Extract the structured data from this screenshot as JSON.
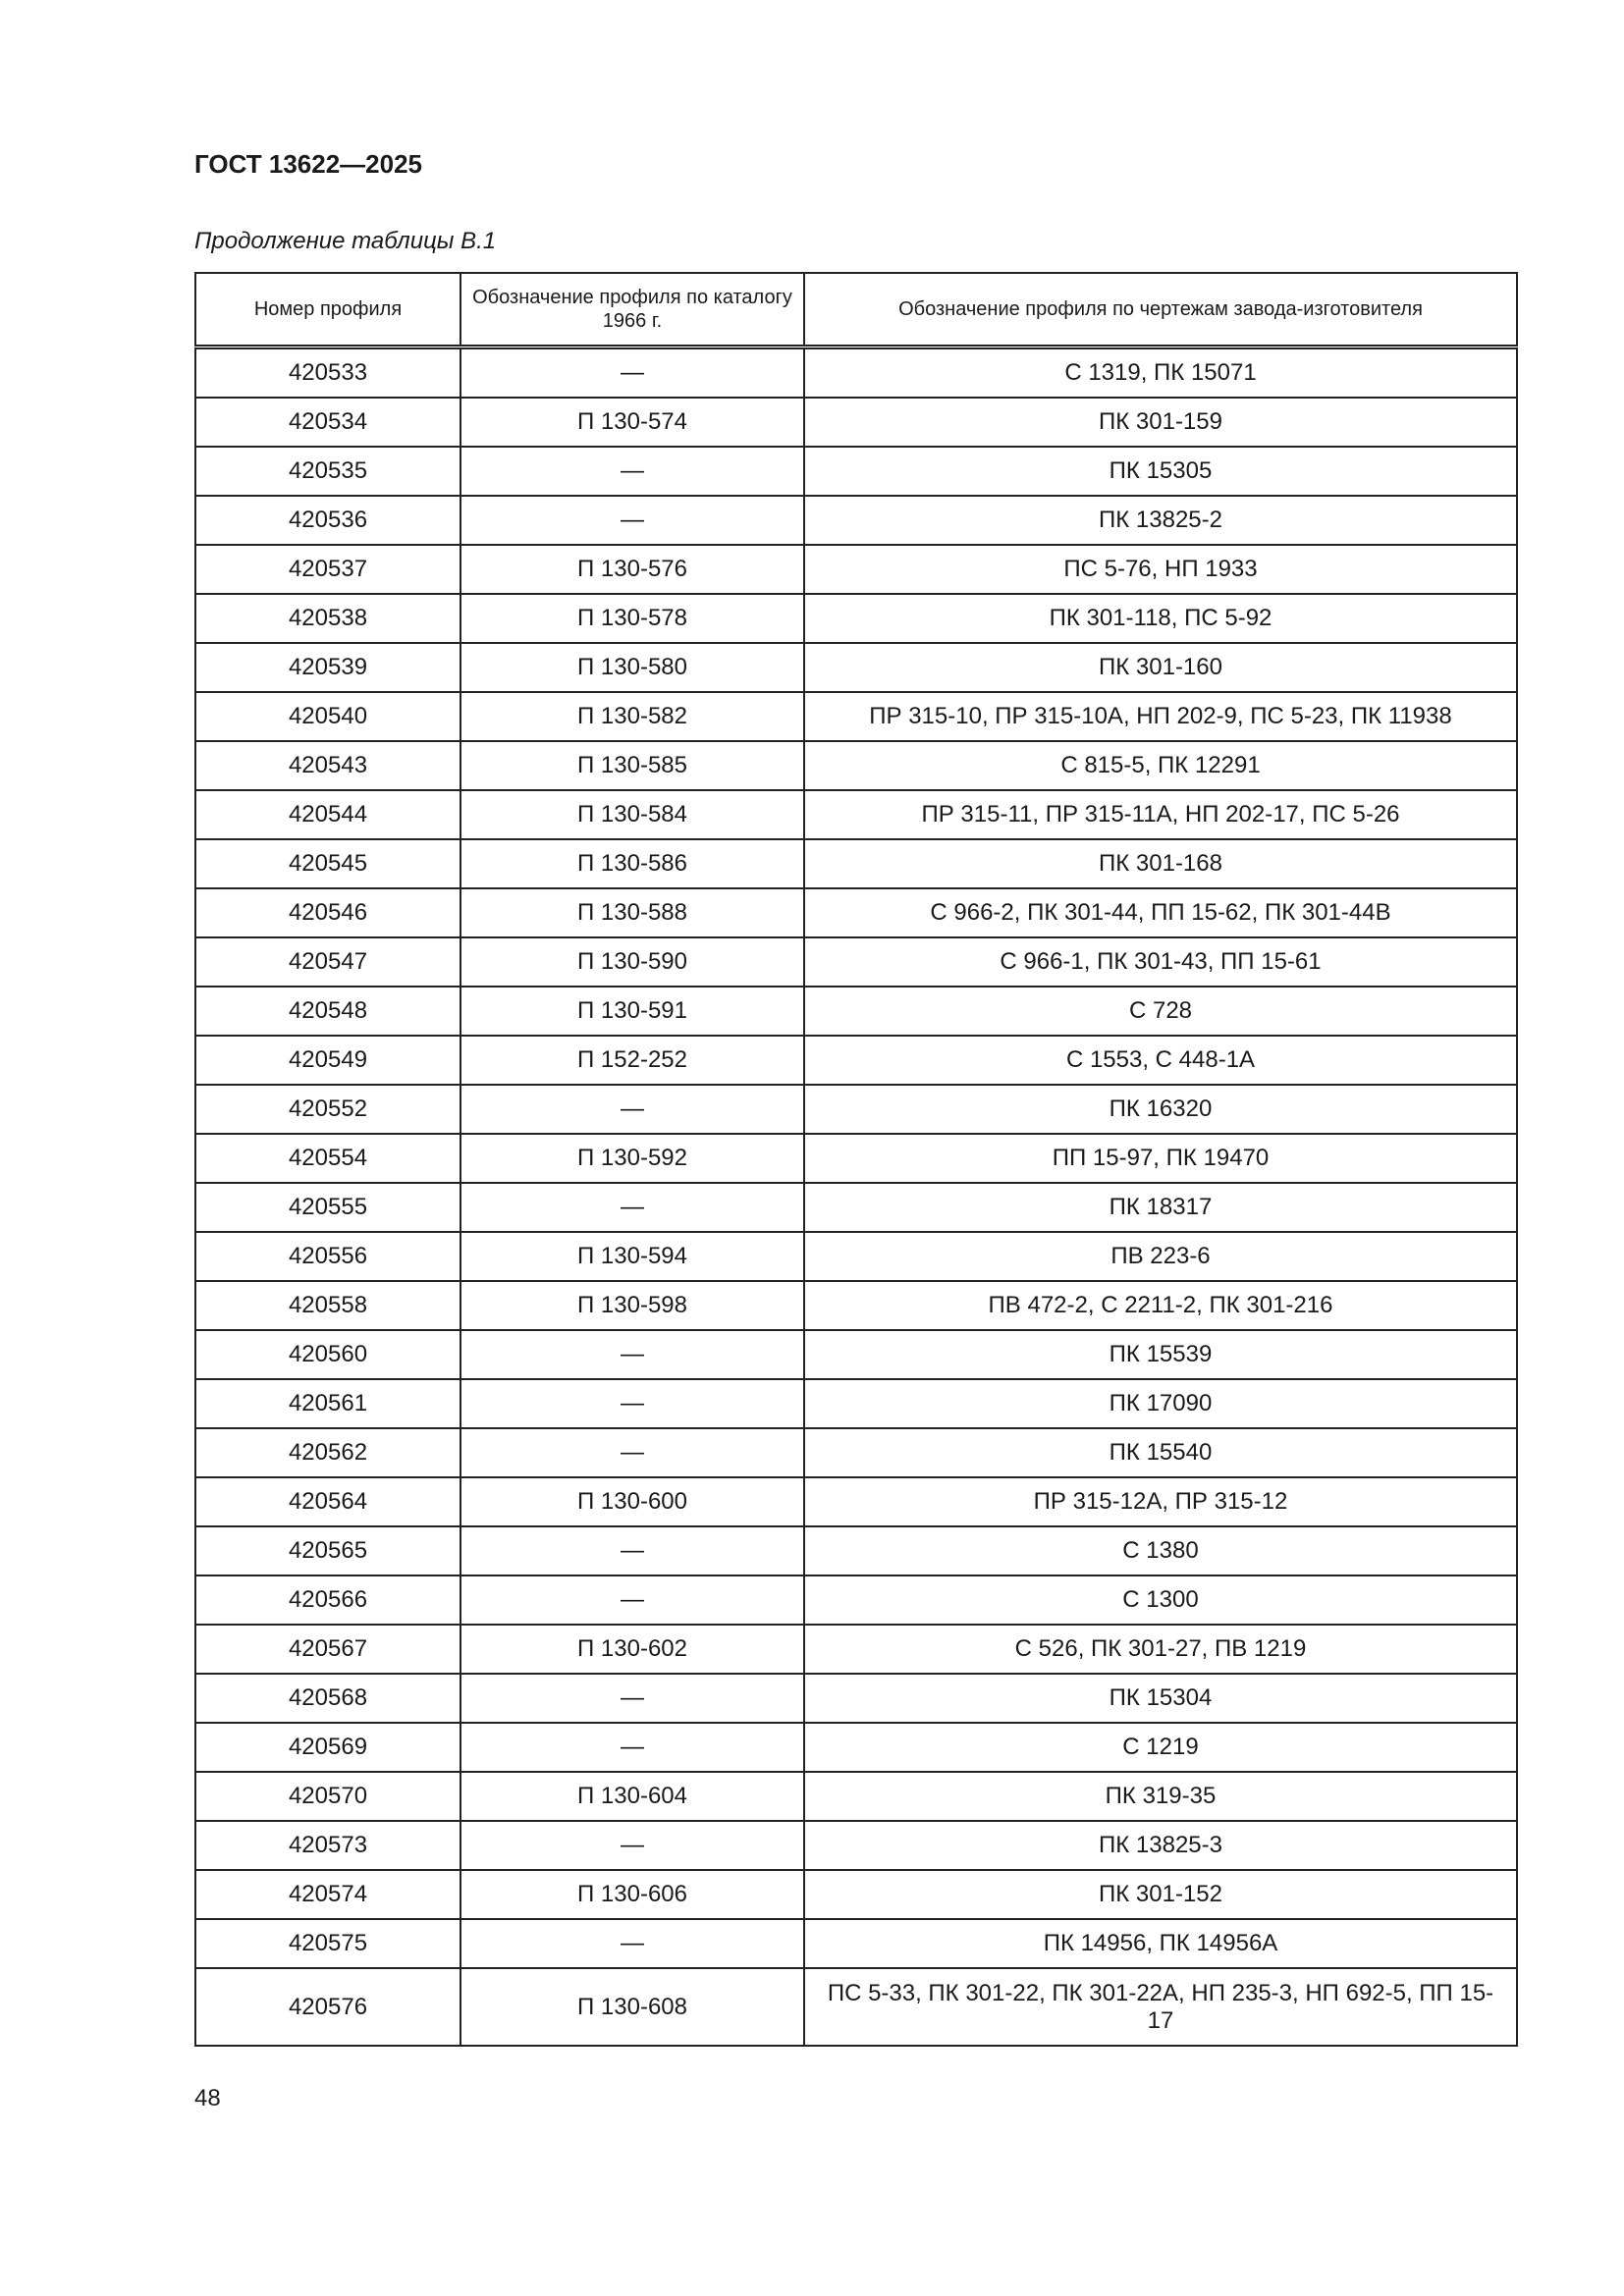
{
  "header": {
    "title": "ГОСТ 13622—2025"
  },
  "caption": "Продолжение таблицы В.1",
  "table": {
    "columns": [
      "Номер профиля",
      "Обозначение профиля по каталогу 1966 г.",
      "Обозначение профиля по чертежам завода-изготовителя"
    ],
    "rows": [
      [
        "420533",
        "—",
        "С 1319, ПК 15071"
      ],
      [
        "420534",
        "П 130-574",
        "ПК 301-159"
      ],
      [
        "420535",
        "—",
        "ПК 15305"
      ],
      [
        "420536",
        "—",
        "ПК 13825-2"
      ],
      [
        "420537",
        "П 130-576",
        "ПС 5-76, НП 1933"
      ],
      [
        "420538",
        "П 130-578",
        "ПК 301-118, ПС 5-92"
      ],
      [
        "420539",
        "П 130-580",
        "ПК 301-160"
      ],
      [
        "420540",
        "П 130-582",
        "ПР 315-10, ПР 315-10А, НП 202-9, ПС 5-23, ПК 11938"
      ],
      [
        "420543",
        "П 130-585",
        "С 815-5, ПК 12291"
      ],
      [
        "420544",
        "П 130-584",
        "ПР 315-11, ПР 315-11А, НП 202-17, ПС 5-26"
      ],
      [
        "420545",
        "П 130-586",
        "ПК 301-168"
      ],
      [
        "420546",
        "П 130-588",
        "С 966-2, ПК 301-44, ПП 15-62, ПК 301-44В"
      ],
      [
        "420547",
        "П 130-590",
        "С 966-1, ПК 301-43, ПП 15-61"
      ],
      [
        "420548",
        "П 130-591",
        "С 728"
      ],
      [
        "420549",
        "П 152-252",
        "С 1553, С 448-1А"
      ],
      [
        "420552",
        "—",
        "ПК 16320"
      ],
      [
        "420554",
        "П 130-592",
        "ПП 15-97, ПК 19470"
      ],
      [
        "420555",
        "—",
        "ПК 18317"
      ],
      [
        "420556",
        "П 130-594",
        "ПВ 223-6"
      ],
      [
        "420558",
        "П 130-598",
        "ПВ 472-2, С 2211-2, ПК 301-216"
      ],
      [
        "420560",
        "—",
        "ПК 15539"
      ],
      [
        "420561",
        "—",
        "ПК 17090"
      ],
      [
        "420562",
        "—",
        "ПК 15540"
      ],
      [
        "420564",
        "П 130-600",
        "ПР 315-12А, ПР 315-12"
      ],
      [
        "420565",
        "—",
        "С 1380"
      ],
      [
        "420566",
        "—",
        "С 1300"
      ],
      [
        "420567",
        "П 130-602",
        "С 526, ПК 301-27, ПВ 1219"
      ],
      [
        "420568",
        "—",
        "ПК 15304"
      ],
      [
        "420569",
        "—",
        "С 1219"
      ],
      [
        "420570",
        "П 130-604",
        "ПК 319-35"
      ],
      [
        "420573",
        "—",
        "ПК 13825-3"
      ],
      [
        "420574",
        "П 130-606",
        "ПК 301-152"
      ],
      [
        "420575",
        "—",
        "ПК 14956, ПК 14956А"
      ],
      [
        "420576",
        "П 130-608",
        "ПС 5-33, ПК 301-22, ПК 301-22А, НП 235-3, НП 692-5, ПП 15-17"
      ]
    ]
  },
  "footer": {
    "page_number": "48"
  }
}
